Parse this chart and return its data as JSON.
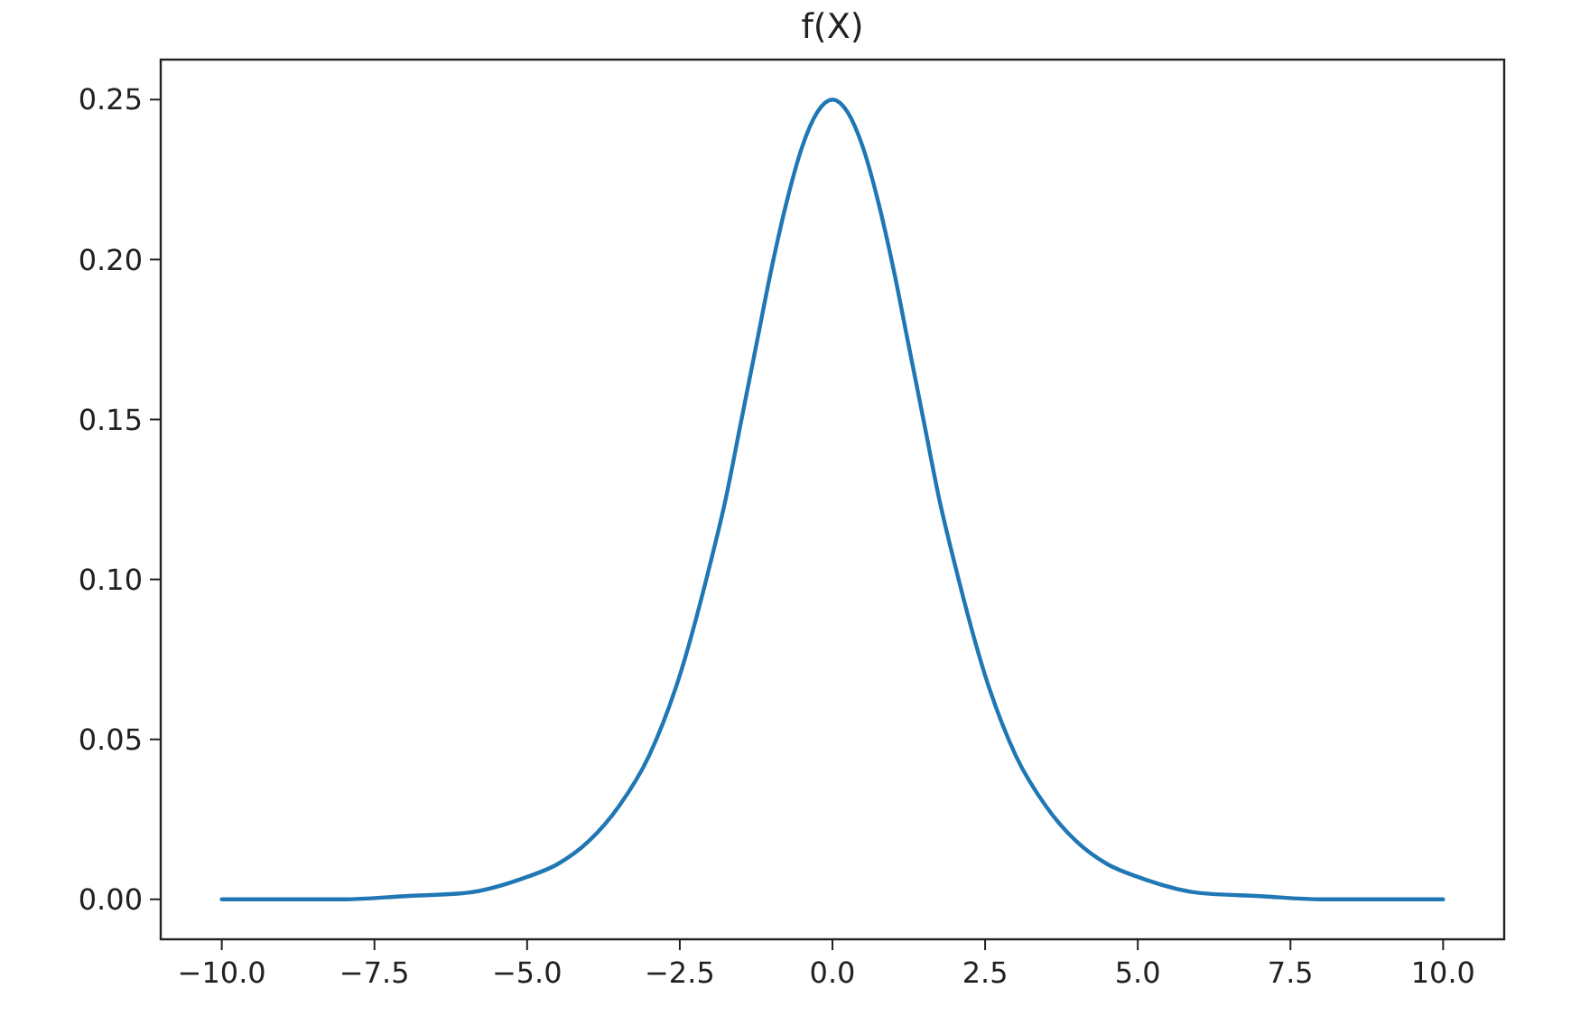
{
  "chart_data": {
    "type": "line",
    "title": "f(X)",
    "x": [
      -10,
      -9,
      -8,
      -7,
      -6,
      -5,
      -4.5,
      -4,
      -3.5,
      -3,
      -2.5,
      -2,
      -1.75,
      -1.5,
      -1.25,
      -1,
      -0.75,
      -0.5,
      -0.25,
      0,
      0.25,
      0.5,
      0.75,
      1,
      1.25,
      1.5,
      1.75,
      2,
      2.5,
      3,
      3.5,
      4,
      4.5,
      5,
      6,
      7,
      8,
      9,
      10
    ],
    "series": [
      {
        "color": "#1f77b4",
        "values": [
          0,
          0,
          0,
          0.001,
          0.002,
          0.007,
          0.011,
          0.018,
          0.029,
          0.045,
          0.07,
          0.105,
          0.125,
          0.149,
          0.173,
          0.197,
          0.218,
          0.235,
          0.246,
          0.25,
          0.246,
          0.235,
          0.218,
          0.197,
          0.173,
          0.149,
          0.125,
          0.105,
          0.07,
          0.045,
          0.029,
          0.018,
          0.011,
          0.007,
          0.002,
          0.001,
          0,
          0,
          0
        ]
      }
    ],
    "xlim": [
      -11,
      11
    ],
    "xticks": [
      {
        "value": -10,
        "label": "−10.0"
      },
      {
        "value": -7.5,
        "label": "−7.5"
      },
      {
        "value": -5,
        "label": "−5.0"
      },
      {
        "value": -2.5,
        "label": "−2.5"
      },
      {
        "value": 0,
        "label": "0.0"
      },
      {
        "value": 2.5,
        "label": "2.5"
      },
      {
        "value": 5,
        "label": "5.0"
      },
      {
        "value": 7.5,
        "label": "7.5"
      },
      {
        "value": 10,
        "label": "10.0"
      }
    ],
    "ylim": [
      -0.0125,
      0.2625
    ],
    "yticks": [
      {
        "value": 0,
        "label": "0.00"
      },
      {
        "value": 0.05,
        "label": "0.05"
      },
      {
        "value": 0.1,
        "label": "0.10"
      },
      {
        "value": 0.15,
        "label": "0.15"
      },
      {
        "value": 0.2,
        "label": "0.20"
      },
      {
        "value": 0.25,
        "label": "0.25"
      }
    ],
    "grid": false
  }
}
